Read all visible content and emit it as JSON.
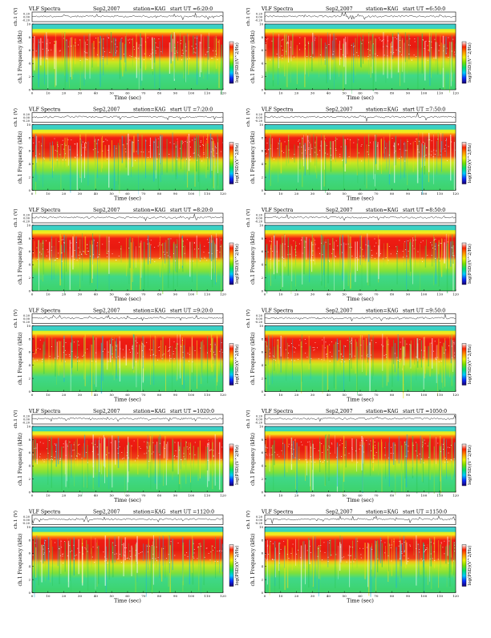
{
  "page": {
    "panels": [
      {
        "title": "VLF Spectra",
        "date": "Sep2,2007",
        "station": "station=KAG",
        "start": "start UT =6:20:0"
      },
      {
        "title": "VLF Spectra",
        "date": "Sep2,2007",
        "station": "station=KAG",
        "start": "start UT =6:50:0"
      },
      {
        "title": "VLF Spectra",
        "date": "Sep2,2007",
        "station": "station=KAG",
        "start": "start UT =7:20:0"
      },
      {
        "title": "VLF Spectra",
        "date": "Sep2,2007",
        "station": "station=KAG",
        "start": "start UT =7:50:0"
      },
      {
        "title": "VLF Spectra",
        "date": "Sep2,2007",
        "station": "station=KAG",
        "start": "start UT =8:20:0"
      },
      {
        "title": "VLF Spectra",
        "date": "Sep2,2007",
        "station": "station=KAG",
        "start": "start UT =8:50:0"
      },
      {
        "title": "VLF Spectra",
        "date": "Sep2,2007",
        "station": "station=KAG",
        "start": "start UT =9:20:0"
      },
      {
        "title": "VLF Spectra",
        "date": "Sep2,2007",
        "station": "station=KAG",
        "start": "start UT =9:50:0"
      },
      {
        "title": "VLF Spectra",
        "date": "Sep2,2007",
        "station": "station=KAG",
        "start": "start UT =1020:0"
      },
      {
        "title": "VLF Spectra",
        "date": "Sep2,2007",
        "station": "station=KAG",
        "start": "start UT =1050:0"
      },
      {
        "title": "VLF Spectra",
        "date": "Sep2,2007",
        "station": "station=KAG",
        "start": "start UT =1120:0"
      },
      {
        "title": "VLF Spectra",
        "date": "Sep2,2007",
        "station": "station=KAG",
        "start": "start UT =1150:0"
      }
    ]
  },
  "chart_data": {
    "type": "heatmap",
    "panel_count": 12,
    "layout": "6 rows x 2 columns",
    "waveform": {
      "ylabel": "ch.1 (V)",
      "ytick_labels": [
        "0.20",
        "0.00",
        "-0.20"
      ],
      "ylim": [
        -0.2,
        0.2
      ]
    },
    "spectrogram": {
      "ylabel": "ch.1 Frequency (kHz)",
      "ylim": [
        0,
        10
      ],
      "ytick_labels": [
        "0",
        "2",
        "4",
        "6",
        "8",
        "10"
      ],
      "xlabel": "Time (sec)",
      "xlim": [
        0,
        120
      ],
      "xtick_labels": [
        "0",
        "10",
        "20",
        "30",
        "40",
        "50",
        "60",
        "70",
        "80",
        "90",
        "100",
        "110",
        "120"
      ],
      "frequency_bands": [
        {
          "from_khz": 0,
          "to_khz": 2.5,
          "dominant": "green"
        },
        {
          "from_khz": 2.5,
          "to_khz": 4.5,
          "dominant": "green-yellow"
        },
        {
          "from_khz": 4.5,
          "to_khz": 8.7,
          "dominant": "red"
        },
        {
          "from_khz": 8.7,
          "to_khz": 9.3,
          "dominant": "yellow"
        },
        {
          "from_khz": 9.3,
          "to_khz": 10,
          "dominant": "cyan"
        }
      ]
    },
    "colorbar": {
      "label": "log(PSD)(V^2/Hz)",
      "colors": [
        "#1a006e",
        "#0a2cff",
        "#00c8ff",
        "#00e070",
        "#7ae000",
        "#f0f000",
        "#ff9000",
        "#ff2000",
        "#f8f8f8"
      ]
    }
  }
}
